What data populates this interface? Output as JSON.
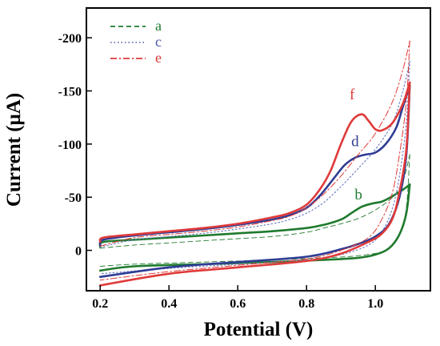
{
  "chart_data": {
    "type": "line",
    "xlabel": "Potential (V)",
    "ylabel": "Current (μA)",
    "xlim": [
      0.16,
      1.16
    ],
    "ylim": [
      -228,
      38
    ],
    "x_ticks": [
      {
        "value": 0.2,
        "label": "0.2"
      },
      {
        "value": 0.4,
        "label": "0.4"
      },
      {
        "value": 0.6,
        "label": "0.6"
      },
      {
        "value": 0.8,
        "label": "0.8"
      },
      {
        "value": 1.0,
        "label": "1.0"
      }
    ],
    "y_ticks": [
      {
        "value": -200,
        "label": "-200"
      },
      {
        "value": -150,
        "label": "-150"
      },
      {
        "value": -100,
        "label": "-100"
      },
      {
        "value": -50,
        "label": "-50"
      },
      {
        "value": 0,
        "label": "0"
      }
    ],
    "grid": false,
    "legend": {
      "placement": "top-left",
      "entries": [
        {
          "label": "a",
          "color": "#1f7a2e",
          "dash": "dashed"
        },
        {
          "label": "c",
          "color": "#4a57a8",
          "dash": "dotted"
        },
        {
          "label": "e",
          "color": "#e03a3a",
          "dash": "dashdot"
        }
      ]
    },
    "series": [
      {
        "name": "a",
        "color": "#1f7a2e",
        "dash": "dashed",
        "width": 0.9,
        "forward": [
          [
            0.2,
            -2
          ],
          [
            0.3,
            -5
          ],
          [
            0.4,
            -7
          ],
          [
            0.5,
            -9
          ],
          [
            0.6,
            -11
          ],
          [
            0.7,
            -13
          ],
          [
            0.8,
            -17
          ],
          [
            0.85,
            -21
          ],
          [
            0.9,
            -25
          ],
          [
            0.95,
            -30
          ],
          [
            1.0,
            -38
          ],
          [
            1.05,
            -50
          ],
          [
            1.08,
            -65
          ],
          [
            1.1,
            -90
          ]
        ],
        "reverse": [
          [
            1.1,
            -90
          ],
          [
            1.09,
            -40
          ],
          [
            1.07,
            -14
          ],
          [
            1.03,
            0
          ],
          [
            0.95,
            5
          ],
          [
            0.85,
            7
          ],
          [
            0.7,
            9
          ],
          [
            0.5,
            11
          ],
          [
            0.3,
            13
          ],
          [
            0.2,
            15
          ]
        ]
      },
      {
        "name": "b",
        "color": "#1f7a2e",
        "dash": "solid",
        "width": 2.6,
        "forward": [
          [
            0.2,
            -3
          ],
          [
            0.21,
            -8
          ],
          [
            0.3,
            -10
          ],
          [
            0.4,
            -12
          ],
          [
            0.5,
            -14
          ],
          [
            0.6,
            -16
          ],
          [
            0.7,
            -18
          ],
          [
            0.8,
            -21
          ],
          [
            0.85,
            -24
          ],
          [
            0.9,
            -29
          ],
          [
            0.93,
            -35
          ],
          [
            0.96,
            -41
          ],
          [
            0.99,
            -44
          ],
          [
            1.02,
            -46
          ],
          [
            1.05,
            -51
          ],
          [
            1.08,
            -57
          ],
          [
            1.1,
            -62
          ]
        ],
        "reverse": [
          [
            1.1,
            -62
          ],
          [
            1.09,
            -35
          ],
          [
            1.07,
            -15
          ],
          [
            1.04,
            -2
          ],
          [
            1.0,
            4
          ],
          [
            0.95,
            7
          ],
          [
            0.85,
            9
          ],
          [
            0.7,
            11
          ],
          [
            0.5,
            13
          ],
          [
            0.3,
            15
          ],
          [
            0.2,
            19
          ]
        ]
      },
      {
        "name": "c",
        "color": "#6f7fc4",
        "dash": "dotted",
        "width": 1.2,
        "forward": [
          [
            0.2,
            -3
          ],
          [
            0.3,
            -10
          ],
          [
            0.4,
            -13
          ],
          [
            0.5,
            -16
          ],
          [
            0.6,
            -20
          ],
          [
            0.7,
            -25
          ],
          [
            0.75,
            -29
          ],
          [
            0.8,
            -35
          ],
          [
            0.85,
            -45
          ],
          [
            0.9,
            -60
          ],
          [
            0.95,
            -77
          ],
          [
            1.0,
            -95
          ],
          [
            1.05,
            -120
          ],
          [
            1.08,
            -150
          ],
          [
            1.1,
            -178
          ]
        ],
        "reverse": [
          [
            1.1,
            -178
          ],
          [
            1.09,
            -120
          ],
          [
            1.07,
            -70
          ],
          [
            1.05,
            -40
          ],
          [
            1.02,
            -18
          ],
          [
            0.98,
            -5
          ],
          [
            0.9,
            4
          ],
          [
            0.8,
            9
          ],
          [
            0.6,
            13
          ],
          [
            0.4,
            17
          ],
          [
            0.2,
            22
          ]
        ]
      },
      {
        "name": "d",
        "color": "#2f3c94",
        "dash": "solid",
        "width": 2.6,
        "forward": [
          [
            0.2,
            -5
          ],
          [
            0.21,
            -10
          ],
          [
            0.3,
            -14
          ],
          [
            0.4,
            -17
          ],
          [
            0.5,
            -20
          ],
          [
            0.6,
            -24
          ],
          [
            0.7,
            -29
          ],
          [
            0.75,
            -33
          ],
          [
            0.8,
            -40
          ],
          [
            0.84,
            -52
          ],
          [
            0.88,
            -68
          ],
          [
            0.91,
            -80
          ],
          [
            0.94,
            -87
          ],
          [
            0.97,
            -90
          ],
          [
            1.0,
            -92
          ],
          [
            1.03,
            -100
          ],
          [
            1.06,
            -115
          ],
          [
            1.08,
            -135
          ],
          [
            1.1,
            -155
          ]
        ],
        "reverse": [
          [
            1.1,
            -155
          ],
          [
            1.09,
            -90
          ],
          [
            1.07,
            -50
          ],
          [
            1.04,
            -25
          ],
          [
            1.0,
            -13
          ],
          [
            0.95,
            -6
          ],
          [
            0.9,
            -1
          ],
          [
            0.8,
            6
          ],
          [
            0.6,
            11
          ],
          [
            0.4,
            16
          ],
          [
            0.2,
            25
          ]
        ]
      },
      {
        "name": "e",
        "color": "#e03a3a",
        "dash": "dashdot",
        "width": 1.0,
        "forward": [
          [
            0.2,
            -4
          ],
          [
            0.3,
            -12
          ],
          [
            0.4,
            -15
          ],
          [
            0.5,
            -18
          ],
          [
            0.6,
            -22
          ],
          [
            0.7,
            -28
          ],
          [
            0.75,
            -32
          ],
          [
            0.8,
            -40
          ],
          [
            0.85,
            -53
          ],
          [
            0.9,
            -70
          ],
          [
            0.95,
            -90
          ],
          [
            1.0,
            -110
          ],
          [
            1.05,
            -140
          ],
          [
            1.08,
            -170
          ],
          [
            1.1,
            -197
          ]
        ],
        "reverse": [
          [
            1.1,
            -197
          ],
          [
            1.09,
            -140
          ],
          [
            1.07,
            -90
          ],
          [
            1.05,
            -55
          ],
          [
            1.02,
            -30
          ],
          [
            0.98,
            -12
          ],
          [
            0.9,
            0
          ],
          [
            0.8,
            8
          ],
          [
            0.6,
            14
          ],
          [
            0.4,
            20
          ],
          [
            0.2,
            28
          ]
        ]
      },
      {
        "name": "f",
        "color": "#e03a3a",
        "dash": "solid",
        "width": 2.6,
        "forward": [
          [
            0.2,
            -8
          ],
          [
            0.21,
            -12
          ],
          [
            0.3,
            -15
          ],
          [
            0.4,
            -18
          ],
          [
            0.5,
            -21
          ],
          [
            0.6,
            -25
          ],
          [
            0.7,
            -31
          ],
          [
            0.75,
            -35
          ],
          [
            0.8,
            -43
          ],
          [
            0.84,
            -58
          ],
          [
            0.87,
            -75
          ],
          [
            0.9,
            -100
          ],
          [
            0.93,
            -121
          ],
          [
            0.96,
            -128
          ],
          [
            0.98,
            -122
          ],
          [
            1.0,
            -114
          ],
          [
            1.02,
            -113
          ],
          [
            1.05,
            -120
          ],
          [
            1.08,
            -138
          ],
          [
            1.1,
            -158
          ]
        ],
        "reverse": [
          [
            1.1,
            -158
          ],
          [
            1.09,
            -95
          ],
          [
            1.07,
            -55
          ],
          [
            1.05,
            -30
          ],
          [
            1.02,
            -16
          ],
          [
            0.98,
            -8
          ],
          [
            0.9,
            3
          ],
          [
            0.8,
            10
          ],
          [
            0.6,
            16
          ],
          [
            0.4,
            22
          ],
          [
            0.2,
            33
          ]
        ]
      }
    ],
    "curve_labels": [
      {
        "text": "f",
        "color": "#e03a3a",
        "x": 0.925,
        "y": -142
      },
      {
        "text": "d",
        "color": "#2f3c94",
        "x": 0.93,
        "y": -98
      },
      {
        "text": "b",
        "color": "#1f7a2e",
        "x": 0.94,
        "y": -48
      }
    ]
  }
}
